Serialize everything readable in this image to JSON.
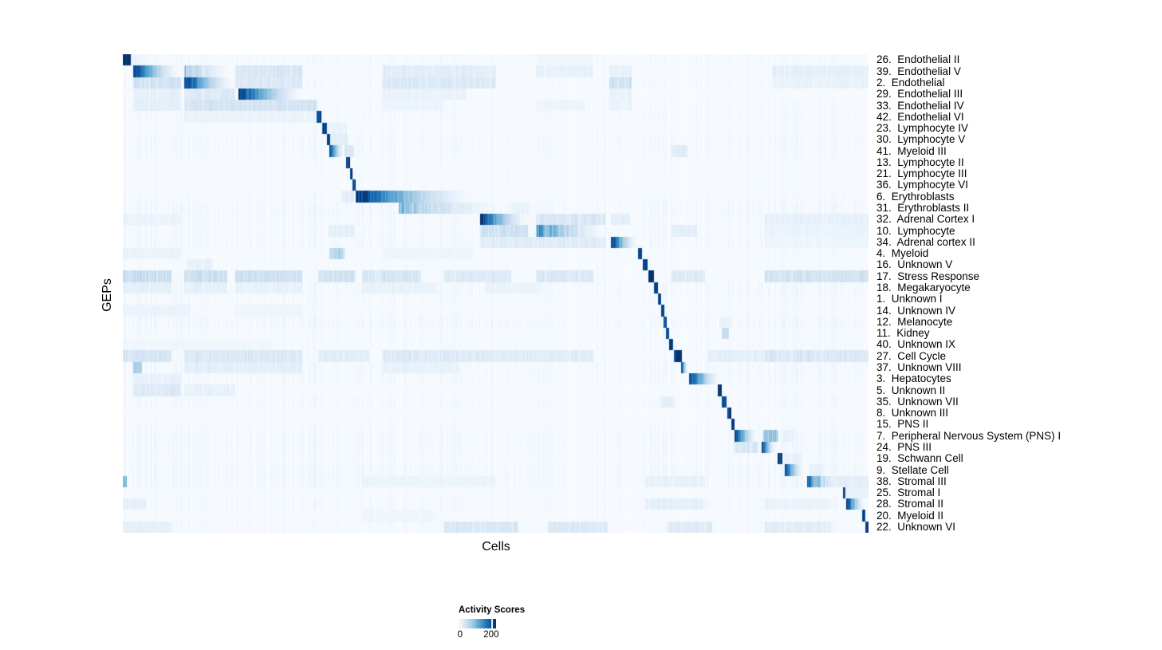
{
  "chart_data": {
    "type": "heatmap",
    "title": "",
    "xlabel": "Cells",
    "ylabel": "GEPs",
    "grid": false,
    "x_axis": {
      "tick_labels": [],
      "description": "individual cells, no tick labels shown"
    },
    "value_max": 235,
    "colormap": {
      "name": "Blues",
      "stops": [
        "#F7FBFF",
        "#DEEBF7",
        "#C6DBEF",
        "#9ECAE1",
        "#6BAED6",
        "#4292C6",
        "#2171B5",
        "#08519C",
        "#08306B"
      ]
    },
    "legend": {
      "title": "Activity Scores",
      "ticks": [
        {
          "label": "0",
          "pos": 0.04
        },
        {
          "label": "200",
          "pos": 0.87
        }
      ]
    },
    "_blocks_format": "each block = [x_start_fraction, x_end_fraction, peak_activity_score, fade_to_right(0/1), striped_texture(0/1)]",
    "rows": [
      {
        "label": "26.  Endothelial II",
        "blocks": [
          [
            0.0,
            0.01,
            235,
            0,
            0
          ],
          [
            0.01,
            0.055,
            22,
            1,
            1
          ],
          [
            0.553,
            0.63,
            12,
            0,
            1
          ]
        ]
      },
      {
        "label": "39.  Endothelial V",
        "blocks": [
          [
            0.013,
            0.078,
            235,
            1,
            0
          ],
          [
            0.082,
            0.15,
            110,
            1,
            1
          ],
          [
            0.15,
            0.24,
            45,
            0,
            1
          ],
          [
            0.348,
            0.5,
            32,
            0,
            1
          ],
          [
            0.553,
            0.63,
            22,
            0,
            1
          ],
          [
            0.652,
            0.682,
            24,
            0,
            1
          ],
          [
            0.87,
            1.0,
            26,
            0,
            1
          ]
        ]
      },
      {
        "label": "2.  Endothelial",
        "blocks": [
          [
            0.082,
            0.15,
            235,
            1,
            0
          ],
          [
            0.013,
            0.078,
            55,
            0,
            1
          ],
          [
            0.15,
            0.24,
            40,
            0,
            1
          ],
          [
            0.348,
            0.5,
            42,
            0,
            1
          ],
          [
            0.652,
            0.682,
            55,
            0,
            1
          ],
          [
            0.87,
            1.0,
            20,
            0,
            1
          ]
        ]
      },
      {
        "label": "29.  Endothelial III",
        "blocks": [
          [
            0.155,
            0.245,
            235,
            1,
            0
          ],
          [
            0.082,
            0.15,
            38,
            0,
            1
          ],
          [
            0.013,
            0.078,
            26,
            0,
            1
          ],
          [
            0.348,
            0.46,
            20,
            0,
            1
          ],
          [
            0.652,
            0.682,
            20,
            0,
            1
          ]
        ]
      },
      {
        "label": "33.  Endothelial IV",
        "blocks": [
          [
            0.082,
            0.26,
            52,
            0,
            1
          ],
          [
            0.013,
            0.078,
            28,
            0,
            1
          ],
          [
            0.348,
            0.43,
            16,
            0,
            1
          ],
          [
            0.553,
            0.62,
            14,
            0,
            1
          ],
          [
            0.652,
            0.682,
            18,
            0,
            1
          ]
        ]
      },
      {
        "label": "42.  Endothelial VI",
        "blocks": [
          [
            0.259,
            0.266,
            225,
            0,
            0
          ],
          [
            0.082,
            0.26,
            18,
            0,
            1
          ]
        ]
      },
      {
        "label": "23.  Lymphocyte IV",
        "blocks": [
          [
            0.267,
            0.273,
            225,
            0,
            0
          ],
          [
            0.274,
            0.3,
            22,
            0,
            1
          ]
        ]
      },
      {
        "label": "30.  Lymphocyte V",
        "blocks": [
          [
            0.273,
            0.278,
            225,
            0,
            0
          ],
          [
            0.278,
            0.302,
            30,
            0,
            1
          ]
        ]
      },
      {
        "label": "41.  Myeloid III",
        "blocks": [
          [
            0.276,
            0.297,
            235,
            1,
            0
          ],
          [
            0.297,
            0.31,
            40,
            0,
            1
          ],
          [
            0.735,
            0.757,
            35,
            0,
            1
          ]
        ]
      },
      {
        "label": "13.  Lymphocyte II",
        "blocks": [
          [
            0.299,
            0.304,
            225,
            0,
            0
          ]
        ]
      },
      {
        "label": "21.  Lymphocyte III",
        "blocks": [
          [
            0.304,
            0.308,
            225,
            0,
            0
          ]
        ]
      },
      {
        "label": "36.  Lymphocyte VI",
        "blocks": [
          [
            0.308,
            0.312,
            225,
            0,
            0
          ]
        ]
      },
      {
        "label": "6.  Erythroblasts",
        "blocks": [
          [
            0.312,
            0.476,
            235,
            1,
            0
          ],
          [
            0.292,
            0.31,
            28,
            0,
            1
          ]
        ]
      },
      {
        "label": "31.  Erythroblasts II",
        "blocks": [
          [
            0.369,
            0.519,
            130,
            1,
            1
          ],
          [
            0.519,
            0.545,
            20,
            0,
            1
          ]
        ]
      },
      {
        "label": "32.  Adrenal Cortex I",
        "blocks": [
          [
            0.479,
            0.545,
            235,
            1,
            0
          ],
          [
            0.553,
            0.647,
            45,
            0,
            1
          ],
          [
            0.654,
            0.68,
            30,
            0,
            1
          ],
          [
            0.86,
            1.0,
            24,
            0,
            1
          ],
          [
            0.0,
            0.078,
            18,
            0,
            1
          ]
        ]
      },
      {
        "label": "10.  Lymphocyte",
        "blocks": [
          [
            0.553,
            0.652,
            210,
            1,
            1
          ],
          [
            0.479,
            0.543,
            60,
            0,
            1
          ],
          [
            0.274,
            0.31,
            25,
            0,
            1
          ],
          [
            0.735,
            0.77,
            28,
            0,
            1
          ],
          [
            0.86,
            1.0,
            18,
            0,
            1
          ]
        ]
      },
      {
        "label": "34.  Adrenal cortex II",
        "blocks": [
          [
            0.654,
            0.69,
            235,
            1,
            0
          ],
          [
            0.479,
            0.647,
            35,
            0,
            1
          ],
          [
            0.86,
            1.0,
            14,
            0,
            1
          ]
        ]
      },
      {
        "label": "4.  Myeloid",
        "blocks": [
          [
            0.69,
            0.696,
            225,
            0,
            0
          ],
          [
            0.276,
            0.297,
            85,
            0,
            1
          ],
          [
            0.0,
            0.078,
            18,
            0,
            1
          ],
          [
            0.348,
            0.47,
            14,
            0,
            1
          ]
        ]
      },
      {
        "label": "16.  Unknown V",
        "blocks": [
          [
            0.697,
            0.703,
            225,
            0,
            0
          ],
          [
            0.085,
            0.12,
            22,
            0,
            1
          ]
        ]
      },
      {
        "label": "17.  Stress Response",
        "blocks": [
          [
            0.704,
            0.712,
            235,
            0,
            0
          ],
          [
            0.0,
            0.065,
            65,
            0,
            1
          ],
          [
            0.082,
            0.14,
            65,
            0,
            1
          ],
          [
            0.15,
            0.24,
            60,
            0,
            1
          ],
          [
            0.262,
            0.312,
            55,
            0,
            1
          ],
          [
            0.32,
            0.4,
            48,
            0,
            1
          ],
          [
            0.43,
            0.52,
            40,
            0,
            1
          ],
          [
            0.553,
            0.631,
            42,
            0,
            1
          ],
          [
            0.735,
            0.78,
            38,
            0,
            1
          ],
          [
            0.86,
            1.0,
            55,
            0,
            1
          ]
        ]
      },
      {
        "label": "18.  Megakaryocyte",
        "blocks": [
          [
            0.712,
            0.717,
            225,
            0,
            0
          ],
          [
            0.0,
            0.065,
            28,
            0,
            1
          ],
          [
            0.082,
            0.14,
            26,
            0,
            1
          ],
          [
            0.15,
            0.24,
            22,
            0,
            1
          ],
          [
            0.32,
            0.42,
            22,
            0,
            1
          ],
          [
            0.485,
            0.56,
            18,
            0,
            1
          ]
        ]
      },
      {
        "label": "1.  Unknown I",
        "blocks": [
          [
            0.717,
            0.721,
            210,
            0,
            0
          ]
        ]
      },
      {
        "label": "14.  Unknown IV",
        "blocks": [
          [
            0.721,
            0.726,
            215,
            0,
            0
          ],
          [
            0.0,
            0.09,
            18,
            0,
            1
          ],
          [
            0.15,
            0.24,
            13,
            0,
            1
          ]
        ]
      },
      {
        "label": "12.  Melanocyte",
        "blocks": [
          [
            0.725,
            0.729,
            215,
            0,
            0
          ],
          [
            0.8,
            0.815,
            20,
            0,
            1
          ]
        ]
      },
      {
        "label": "11.  Kidney",
        "blocks": [
          [
            0.728,
            0.732,
            215,
            0,
            0
          ],
          [
            0.803,
            0.812,
            55,
            0,
            0
          ]
        ]
      },
      {
        "label": "40.  Unknown IX",
        "blocks": [
          [
            0.732,
            0.737,
            220,
            0,
            0
          ],
          [
            0.0,
            0.2,
            10,
            0,
            1
          ]
        ]
      },
      {
        "label": "27.  Cell Cycle",
        "blocks": [
          [
            0.738,
            0.749,
            235,
            0,
            0
          ],
          [
            0.0,
            0.065,
            50,
            0,
            1
          ],
          [
            0.082,
            0.24,
            42,
            0,
            1
          ],
          [
            0.262,
            0.33,
            32,
            0,
            1
          ],
          [
            0.348,
            0.5,
            38,
            0,
            1
          ],
          [
            0.485,
            0.631,
            32,
            0,
            1
          ],
          [
            0.785,
            0.9,
            28,
            0,
            1
          ],
          [
            0.86,
            1.0,
            42,
            0,
            1
          ]
        ]
      },
      {
        "label": "37.  Unknown VIII",
        "blocks": [
          [
            0.748,
            0.758,
            235,
            1,
            0
          ],
          [
            0.013,
            0.025,
            80,
            0,
            0
          ],
          [
            0.082,
            0.24,
            28,
            0,
            1
          ],
          [
            0.348,
            0.45,
            22,
            0,
            1
          ]
        ]
      },
      {
        "label": "3.  Hepatocytes",
        "blocks": [
          [
            0.759,
            0.802,
            235,
            1,
            0
          ],
          [
            0.013,
            0.078,
            22,
            0,
            1
          ]
        ]
      },
      {
        "label": "5.  Unknown II",
        "blocks": [
          [
            0.797,
            0.803,
            225,
            0,
            0
          ],
          [
            0.013,
            0.078,
            40,
            0,
            1
          ],
          [
            0.082,
            0.15,
            22,
            0,
            1
          ]
        ]
      },
      {
        "label": "35.  Unknown VII",
        "blocks": [
          [
            0.803,
            0.809,
            225,
            0,
            0
          ],
          [
            0.72,
            0.74,
            26,
            0,
            1
          ]
        ]
      },
      {
        "label": "8.  Unknown III",
        "blocks": [
          [
            0.81,
            0.815,
            225,
            0,
            0
          ]
        ]
      },
      {
        "label": "15.  PNS II",
        "blocks": [
          [
            0.815,
            0.82,
            225,
            0,
            0
          ]
        ]
      },
      {
        "label": "7.  Peripheral Nervous System (PNS) I",
        "blocks": [
          [
            0.82,
            0.851,
            235,
            1,
            0
          ],
          [
            0.858,
            0.879,
            105,
            0,
            1
          ],
          [
            0.885,
            0.9,
            26,
            0,
            1
          ]
        ]
      },
      {
        "label": "24.  PNS III",
        "blocks": [
          [
            0.856,
            0.875,
            235,
            1,
            0
          ],
          [
            0.82,
            0.851,
            45,
            0,
            1
          ]
        ]
      },
      {
        "label": "19.  Schwann Cell",
        "blocks": [
          [
            0.878,
            0.884,
            225,
            0,
            0
          ],
          [
            0.886,
            0.91,
            22,
            0,
            1
          ]
        ]
      },
      {
        "label": "9.  Stellate Cell",
        "blocks": [
          [
            0.887,
            0.913,
            235,
            1,
            0
          ],
          [
            0.92,
            0.94,
            24,
            0,
            1
          ]
        ]
      },
      {
        "label": "38.  Stromal III",
        "blocks": [
          [
            0.917,
            0.963,
            235,
            1,
            1
          ],
          [
            0.95,
            1.0,
            28,
            0,
            1
          ],
          [
            0.0,
            0.005,
            110,
            0,
            0
          ],
          [
            0.7,
            0.78,
            22,
            0,
            1
          ],
          [
            0.32,
            0.5,
            16,
            0,
            1
          ]
        ]
      },
      {
        "label": "25.  Stromal I",
        "blocks": [
          [
            0.965,
            0.968,
            220,
            0,
            0
          ],
          [
            0.97,
            1.0,
            22,
            0,
            1
          ]
        ]
      },
      {
        "label": "28.  Stromal II",
        "blocks": [
          [
            0.97,
            0.995,
            235,
            1,
            0
          ],
          [
            0.7,
            0.78,
            26,
            0,
            1
          ],
          [
            0.0,
            0.03,
            24,
            0,
            1
          ],
          [
            0.86,
            0.95,
            18,
            0,
            1
          ]
        ]
      },
      {
        "label": "20.  Myeloid II",
        "blocks": [
          [
            0.991,
            0.995,
            220,
            0,
            0
          ],
          [
            0.32,
            0.42,
            12,
            0,
            1
          ]
        ]
      },
      {
        "label": "22.  Unknown VI",
        "blocks": [
          [
            0.995,
            1.0,
            235,
            0,
            0
          ],
          [
            0.43,
            0.53,
            45,
            0,
            1
          ],
          [
            0.57,
            0.65,
            40,
            0,
            1
          ],
          [
            0.73,
            0.79,
            36,
            0,
            1
          ],
          [
            0.86,
            0.95,
            32,
            0,
            1
          ],
          [
            0.0,
            0.065,
            26,
            0,
            1
          ]
        ]
      }
    ]
  }
}
